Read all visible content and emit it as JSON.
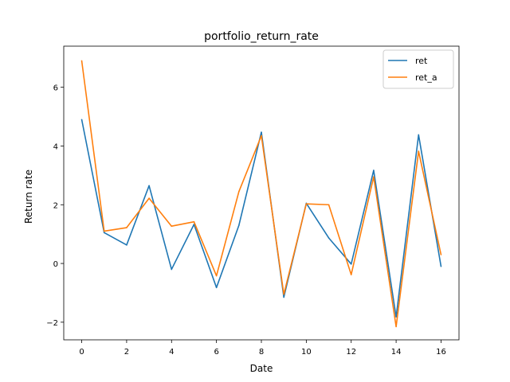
{
  "chart_data": {
    "type": "line",
    "title": "portfolio_return_rate",
    "xlabel": "Date",
    "ylabel": "Return rate",
    "x": [
      0,
      1,
      2,
      3,
      4,
      5,
      6,
      7,
      8,
      9,
      10,
      11,
      12,
      13,
      14,
      15,
      16
    ],
    "xlim": [
      -0.8,
      16.8
    ],
    "ylim": [
      -2.6,
      7.4
    ],
    "xticks": [
      0,
      2,
      4,
      6,
      8,
      10,
      12,
      14,
      16
    ],
    "yticks": [
      -2,
      0,
      2,
      4,
      6
    ],
    "ytick_labels": [
      "−2",
      "0",
      "2",
      "4",
      "6"
    ],
    "grid": false,
    "legend_position": "top-right",
    "series": [
      {
        "name": "ret",
        "color": "#1f77b4",
        "values": [
          4.9,
          1.05,
          0.63,
          2.65,
          -0.2,
          1.33,
          -0.82,
          1.3,
          4.47,
          -1.15,
          2.05,
          0.87,
          -0.02,
          3.17,
          -1.82,
          4.38,
          -0.1
        ]
      },
      {
        "name": "ret_a",
        "color": "#ff7f0e",
        "values": [
          6.9,
          1.1,
          1.22,
          2.22,
          1.27,
          1.42,
          -0.42,
          2.45,
          4.35,
          -1.05,
          2.03,
          2.0,
          -0.38,
          2.95,
          -2.15,
          3.82,
          0.3
        ]
      }
    ]
  }
}
